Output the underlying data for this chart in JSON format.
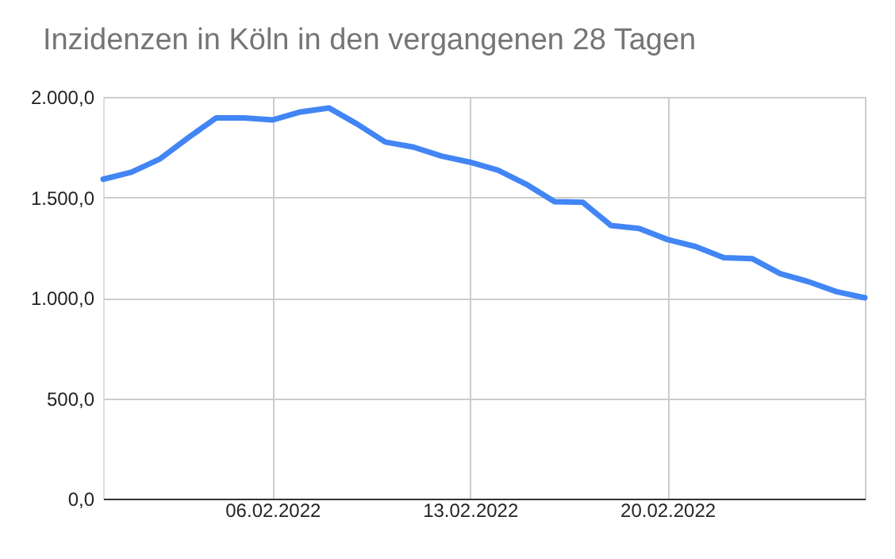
{
  "chart_data": {
    "type": "line",
    "title": "Inzidenzen in Köln in den vergangenen 28 Tagen",
    "x": [
      "2022-01-31",
      "2022-02-01",
      "2022-02-02",
      "2022-02-03",
      "2022-02-04",
      "2022-02-05",
      "2022-02-06",
      "2022-02-07",
      "2022-02-08",
      "2022-02-09",
      "2022-02-10",
      "2022-02-11",
      "2022-02-12",
      "2022-02-13",
      "2022-02-14",
      "2022-02-15",
      "2022-02-16",
      "2022-02-17",
      "2022-02-18",
      "2022-02-19",
      "2022-02-20",
      "2022-02-21",
      "2022-02-22",
      "2022-02-23",
      "2022-02-24",
      "2022-02-25",
      "2022-02-26",
      "2022-02-27"
    ],
    "series": [
      {
        "color": "#4285f4",
        "values": [
          1590,
          1625,
          1690,
          1795,
          1895,
          1895,
          1885,
          1925,
          1945,
          1865,
          1775,
          1750,
          1705,
          1675,
          1635,
          1565,
          1478,
          1475,
          1360,
          1345,
          1290,
          1255,
          1200,
          1195,
          1120,
          1080,
          1030,
          1000
        ]
      }
    ],
    "xlim": [
      "2022-01-31",
      "2022-02-27"
    ],
    "xticks": [
      {
        "value": "2022-02-06",
        "label": "06.02.2022"
      },
      {
        "value": "2022-02-13",
        "label": "13.02.2022"
      },
      {
        "value": "2022-02-20",
        "label": "20.02.2022"
      },
      {
        "value": "2022-02-27",
        "label": null
      }
    ],
    "ylim": [
      0,
      2000
    ],
    "yticks": [
      {
        "value": 0,
        "label": "0,0"
      },
      {
        "value": 500,
        "label": "500,0"
      },
      {
        "value": 1000,
        "label": "1.000,0"
      },
      {
        "value": 1500,
        "label": "1.500,0"
      },
      {
        "value": 2000,
        "label": "2.000,0"
      }
    ],
    "grid": true,
    "legend": false,
    "marker": "none",
    "line_style": "solid"
  }
}
